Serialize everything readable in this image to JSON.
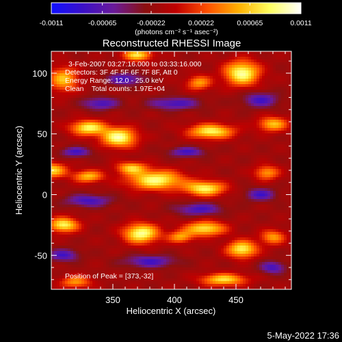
{
  "colorbar": {
    "tick_labels": [
      "-0.0011",
      "-0.00065",
      "-0.00022",
      "0.00022",
      "0.00065",
      "0.0011"
    ],
    "tick_values": [
      -0.0011,
      -0.00065,
      -0.00022,
      0.00022,
      0.00065,
      0.0011
    ],
    "range": [
      -0.0011,
      0.0011
    ],
    "units_label": "(photons cm⁻² s⁻¹ asec⁻²)",
    "colors": [
      "#1010ff",
      "#3a10c8",
      "#6a1a9a",
      "#8a1010",
      "#c00000",
      "#ff5000",
      "#ffb000",
      "#ffff60",
      "#ffffff"
    ]
  },
  "chart_data": {
    "type": "heatmap",
    "title": "Reconstructed RHESSI Image",
    "xlabel": "Heliocentric X (arcsec)",
    "ylabel": "Heliocentric Y (arcsec)",
    "xlim": [
      300,
      495
    ],
    "ylim": [
      -78,
      118
    ],
    "x_ticks": [
      350,
      400,
      450
    ],
    "y_ticks": [
      -50,
      0,
      50,
      100
    ],
    "annotations": [
      "3-Feb-2007 03:27:16.000 to 03:33:16.000",
      "Detectors: 3F 4F 5F 6F 7F 8F, Att 0",
      "Energy Range: 12.0 - 25.0 keV",
      "Clean    Total counts: 1.97E+04"
    ],
    "peak_label": "Position of Peak = [373,-32]",
    "peak": [
      373,
      -32
    ]
  },
  "footer": {
    "timestamp": "5-May-2022 17:36"
  }
}
